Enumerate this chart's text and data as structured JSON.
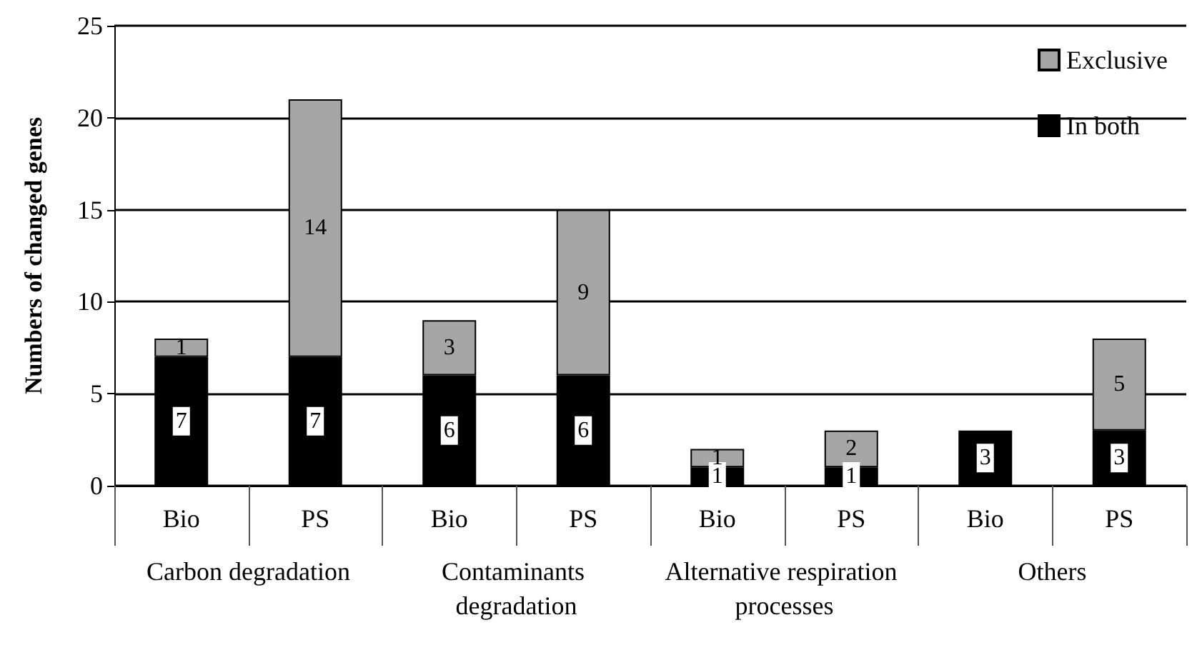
{
  "chart_data": {
    "type": "bar",
    "stacked": true,
    "ylabel": "Numbers of changed genes",
    "categories": [
      "Bio",
      "PS",
      "Bio",
      "PS",
      "Bio",
      "PS",
      "Bio",
      "PS"
    ],
    "annotations": [
      "Carbon degradation",
      "Contaminants degradation",
      "Alternative respiration processes",
      "Others"
    ],
    "series": [
      {
        "name": "In both",
        "color": "#000000",
        "values": [
          7,
          7,
          6,
          6,
          1,
          1,
          3,
          3
        ],
        "value_labels": [
          "7",
          "7",
          "6",
          "6",
          "1",
          "1",
          "3",
          "3"
        ]
      },
      {
        "name": "Exclusive",
        "color": "#a6a6a6",
        "values": [
          1,
          14,
          3,
          9,
          1,
          2,
          null,
          5
        ],
        "value_labels": [
          "1",
          "14",
          "3",
          "9",
          "1",
          "2",
          null,
          "5"
        ]
      }
    ],
    "ylim": [
      0,
      25
    ],
    "yticks": [
      0,
      5,
      10,
      15,
      20,
      25
    ],
    "grid": "y",
    "legend": "top right"
  }
}
